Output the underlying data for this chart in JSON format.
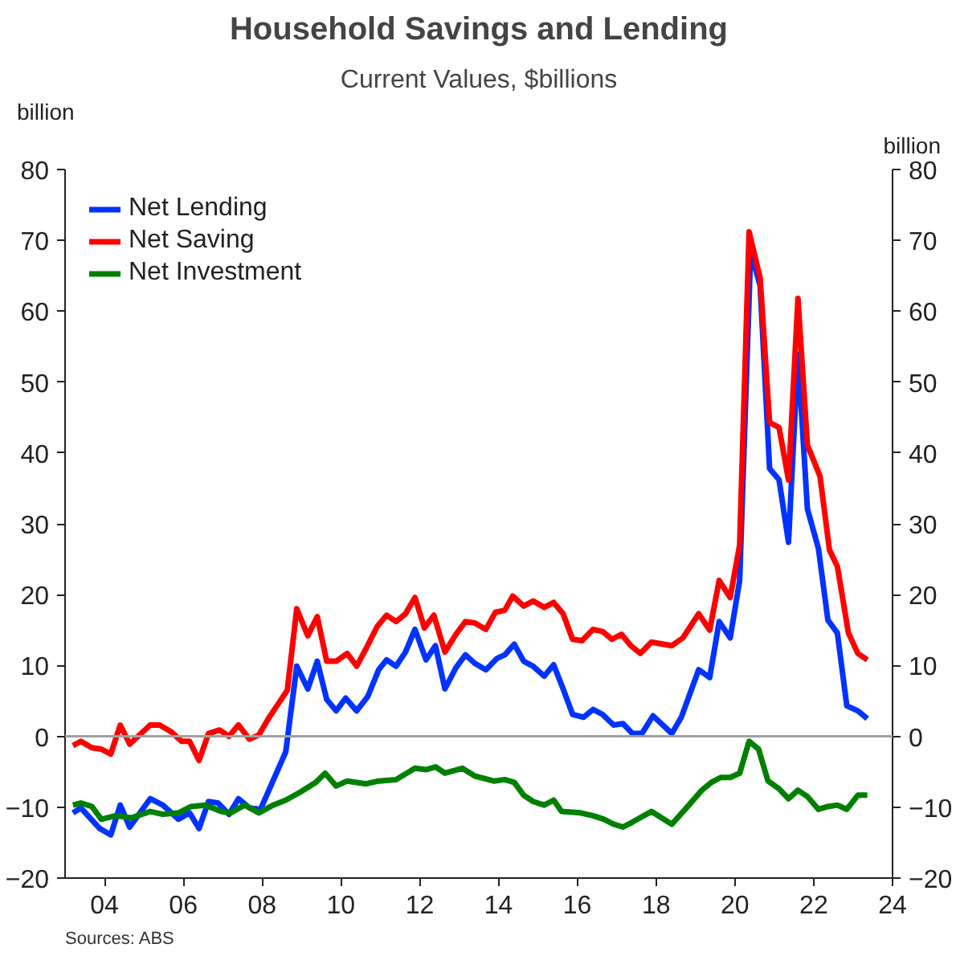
{
  "chart_data": {
    "type": "line",
    "title": "Household Savings and Lending",
    "subtitle": "Current Values, $billions",
    "ylabel": "billion",
    "y2label": "billion",
    "annotations": [
      "Sources: ABS"
    ],
    "xlim": [
      2003,
      2024
    ],
    "xticks": [
      {
        "value": 2004,
        "label": "04"
      },
      {
        "value": 2006,
        "label": "06"
      },
      {
        "value": 2008,
        "label": "08"
      },
      {
        "value": 2010,
        "label": "10"
      },
      {
        "value": 2012,
        "label": "12"
      },
      {
        "value": 2014,
        "label": "14"
      },
      {
        "value": 2016,
        "label": "16"
      },
      {
        "value": 2018,
        "label": "18"
      },
      {
        "value": 2020,
        "label": "20"
      },
      {
        "value": 2022,
        "label": "22"
      },
      {
        "value": 2024,
        "label": "24"
      }
    ],
    "ylim": [
      -20,
      80
    ],
    "yticks": [
      -20,
      -10,
      0,
      10,
      20,
      30,
      40,
      50,
      60,
      70,
      80
    ],
    "y2lim": [
      -20,
      80
    ],
    "y2ticks": [
      -20,
      -10,
      0,
      10,
      20,
      30,
      40,
      50,
      60,
      70,
      80
    ],
    "ref_lines": [
      {
        "axis": "y",
        "value": 0,
        "color": "#a0a0a0"
      }
    ],
    "legend": "top left",
    "grid": false,
    "marker": "none",
    "line_style": "solid",
    "series": [
      {
        "name": "Net Lending",
        "color": "#0033ff",
        "x": [
          2003.2,
          2003.4,
          2003.88,
          2004.16,
          2004.4,
          2004.64,
          2005.16,
          2005.48,
          2005.88,
          2006.16,
          2006.4,
          2006.64,
          2006.88,
          2007.16,
          2007.4,
          2007.68,
          2007.96,
          2008.6,
          2008.88,
          2009.16,
          2009.4,
          2009.64,
          2009.88,
          2010.12,
          2010.4,
          2010.68,
          2010.96,
          2011.16,
          2011.4,
          2011.64,
          2011.88,
          2012.16,
          2012.4,
          2012.64,
          2012.92,
          2013.16,
          2013.4,
          2013.68,
          2013.96,
          2014.16,
          2014.4,
          2014.64,
          2014.88,
          2015.16,
          2015.4,
          2015.64,
          2015.88,
          2016.16,
          2016.4,
          2016.64,
          2016.92,
          2017.16,
          2017.4,
          2017.64,
          2017.92,
          2018.4,
          2018.64,
          2019.08,
          2019.36,
          2019.6,
          2019.88,
          2020.12,
          2020.4,
          2020.64,
          2020.88,
          2021.12,
          2021.36,
          2021.6,
          2021.84,
          2022.12,
          2022.36,
          2022.6,
          2022.84,
          2023.12,
          2023.36
        ],
        "values": [
          -10.8,
          -10.1,
          -13,
          -13.9,
          -9.7,
          -12.8,
          -8.8,
          -9.7,
          -11.7,
          -10.8,
          -13,
          -9.2,
          -9.4,
          -11,
          -8.8,
          -10.1,
          -10.3,
          -2.2,
          9.9,
          6.7,
          10.6,
          5.2,
          3.6,
          5.4,
          3.6,
          5.6,
          9.4,
          10.8,
          9.9,
          11.9,
          15.1,
          10.8,
          12.8,
          6.7,
          9.7,
          11.5,
          10.3,
          9.4,
          11,
          11.5,
          13,
          10.6,
          9.9,
          8.5,
          10.1,
          6.7,
          3.1,
          2.7,
          3.8,
          3.1,
          1.6,
          1.8,
          0.4,
          0.4,
          2.9,
          0.4,
          2.7,
          9.4,
          8.3,
          16.2,
          13.9,
          22,
          68.5,
          63.6,
          37.8,
          36.2,
          27.4,
          53.9,
          32.1,
          26.5,
          16.4,
          14.6,
          4.3,
          3.6,
          2.5
        ]
      },
      {
        "name": "Net Saving",
        "color": "#ff0000",
        "x": [
          2003.2,
          2003.4,
          2003.68,
          2003.92,
          2004.16,
          2004.4,
          2004.64,
          2005.16,
          2005.4,
          2005.68,
          2005.96,
          2006.16,
          2006.4,
          2006.64,
          2006.92,
          2007.16,
          2007.4,
          2007.68,
          2007.92,
          2008.16,
          2008.4,
          2008.64,
          2008.88,
          2009.16,
          2009.4,
          2009.64,
          2009.88,
          2010.16,
          2010.4,
          2010.64,
          2010.92,
          2011.16,
          2011.4,
          2011.64,
          2011.88,
          2012.12,
          2012.36,
          2012.64,
          2012.92,
          2013.16,
          2013.4,
          2013.68,
          2013.92,
          2014.16,
          2014.36,
          2014.64,
          2014.88,
          2015.16,
          2015.4,
          2015.64,
          2015.88,
          2016.12,
          2016.4,
          2016.64,
          2016.88,
          2017.12,
          2017.36,
          2017.6,
          2017.88,
          2018.4,
          2018.68,
          2019.08,
          2019.36,
          2019.6,
          2019.88,
          2020.12,
          2020.36,
          2020.64,
          2020.88,
          2021.12,
          2021.36,
          2021.6,
          2021.84,
          2022.16,
          2022.4,
          2022.6,
          2022.88,
          2023.12,
          2023.36
        ],
        "values": [
          -1.3,
          -0.7,
          -1.6,
          -1.8,
          -2.5,
          1.6,
          -1.1,
          1.6,
          1.6,
          0.7,
          -0.7,
          -0.7,
          -3.4,
          0.4,
          0.9,
          0,
          1.6,
          -0.4,
          0.2,
          2.5,
          4.5,
          6.5,
          18,
          14.2,
          16.9,
          10.6,
          10.6,
          11.7,
          9.9,
          12.4,
          15.5,
          17.1,
          16.2,
          17.3,
          19.6,
          15.3,
          17.1,
          11.9,
          14.4,
          16.2,
          16,
          15.1,
          17.5,
          17.8,
          19.8,
          18.4,
          19.1,
          18.2,
          18.9,
          17.3,
          13.7,
          13.5,
          15.1,
          14.8,
          13.7,
          14.4,
          12.8,
          11.7,
          13.3,
          12.8,
          13.9,
          17.3,
          15,
          22,
          19.6,
          27,
          71.2,
          64.7,
          44.3,
          43.6,
          36.2,
          61.8,
          41.1,
          36.7,
          26.3,
          24,
          14.6,
          11.7,
          10.8
        ]
      },
      {
        "name": "Net Investment",
        "color": "#008000",
        "x": [
          2003.2,
          2003.4,
          2003.68,
          2003.92,
          2004.28,
          2004.68,
          2005.16,
          2005.48,
          2005.88,
          2006.2,
          2006.56,
          2006.96,
          2007.2,
          2007.56,
          2007.92,
          2008.28,
          2008.6,
          2008.96,
          2009.36,
          2009.6,
          2009.88,
          2010.16,
          2010.64,
          2010.96,
          2011.4,
          2011.88,
          2012.16,
          2012.4,
          2012.64,
          2013.08,
          2013.4,
          2013.88,
          2014.16,
          2014.4,
          2014.64,
          2014.88,
          2015.16,
          2015.4,
          2015.6,
          2016.08,
          2016.4,
          2016.68,
          2016.92,
          2017.16,
          2017.4,
          2017.88,
          2018.4,
          2018.8,
          2019.16,
          2019.4,
          2019.64,
          2019.88,
          2020.12,
          2020.36,
          2020.6,
          2020.84,
          2021.12,
          2021.36,
          2021.6,
          2021.84,
          2022.12,
          2022.36,
          2022.6,
          2022.84,
          2023.12,
          2023.36
        ],
        "values": [
          -9.7,
          -9.4,
          -9.9,
          -11.7,
          -11.2,
          -11.5,
          -10.6,
          -11,
          -10.8,
          -9.9,
          -9.7,
          -10.6,
          -10.8,
          -9.7,
          -10.8,
          -9.7,
          -9,
          -7.9,
          -6.5,
          -5.2,
          -7,
          -6.3,
          -6.7,
          -6.3,
          -6.1,
          -4.5,
          -4.7,
          -4.3,
          -5.2,
          -4.5,
          -5.6,
          -6.3,
          -6.1,
          -6.5,
          -8.3,
          -9.2,
          -9.7,
          -9,
          -10.6,
          -10.8,
          -11.2,
          -11.7,
          -12.4,
          -12.8,
          -12.1,
          -10.6,
          -12.4,
          -9.9,
          -7.6,
          -6.5,
          -5.8,
          -5.8,
          -5.2,
          -0.7,
          -1.8,
          -6.3,
          -7.4,
          -8.8,
          -7.6,
          -8.5,
          -10.3,
          -9.9,
          -9.7,
          -10.3,
          -8.3,
          -8.3
        ]
      }
    ]
  }
}
